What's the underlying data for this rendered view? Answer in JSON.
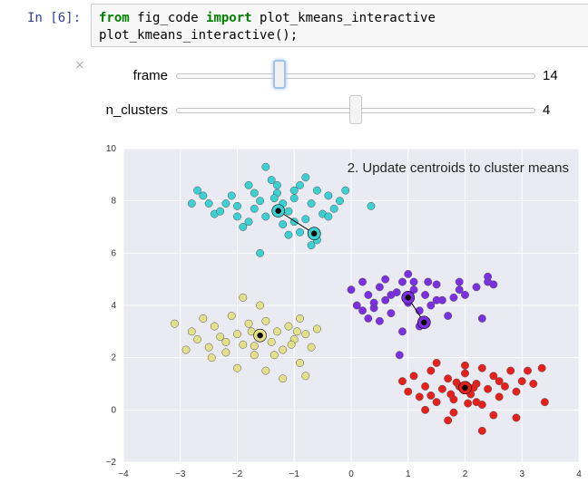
{
  "cell": {
    "prompt": "In [6]:",
    "line1_kw1": "from",
    "line1_mod": " fig_code ",
    "line1_kw2": "import",
    "line1_fn": " plot_kmeans_interactive",
    "line2": "plot_kmeans_interactive();"
  },
  "widgets": {
    "close_glyph": "×",
    "frame": {
      "label": "frame",
      "value": "14",
      "min": 0,
      "max": 50,
      "current": 14
    },
    "n_clusters": {
      "label": "n_clusters",
      "value": "4",
      "min": 1,
      "max": 7,
      "current": 4
    }
  },
  "chart_data": {
    "type": "scatter",
    "title": "",
    "annotation": "2. Update centroids to cluster means",
    "xlim": [
      -4,
      4
    ],
    "ylim": [
      -2,
      10
    ],
    "xticks": [
      "−4",
      "−3",
      "−2",
      "−1",
      "0",
      "1",
      "2",
      "3",
      "4"
    ],
    "yticks": [
      "−2",
      "0",
      "2",
      "4",
      "6",
      "8",
      "10"
    ],
    "grid": true,
    "clusters": [
      {
        "color": "#3dd0d2",
        "points": [
          [
            -2.7,
            8.4
          ],
          [
            -2.6,
            8.2
          ],
          [
            -2.5,
            7.9
          ],
          [
            -2.4,
            7.5
          ],
          [
            -2.2,
            7.9
          ],
          [
            -2.1,
            8.2
          ],
          [
            -2.0,
            7.4
          ],
          [
            -1.9,
            7.0
          ],
          [
            -1.8,
            8.6
          ],
          [
            -1.7,
            7.7
          ],
          [
            -1.6,
            8.0
          ],
          [
            -1.5,
            7.4
          ],
          [
            -1.4,
            8.8
          ],
          [
            -1.3,
            8.3
          ],
          [
            -1.2,
            7.1
          ],
          [
            -1.1,
            7.6
          ],
          [
            -1.0,
            8.1
          ],
          [
            -0.9,
            8.6
          ],
          [
            -0.8,
            7.3
          ],
          [
            -0.7,
            7.9
          ],
          [
            -0.6,
            8.4
          ],
          [
            -0.5,
            7.5
          ],
          [
            -0.4,
            8.2
          ],
          [
            -0.3,
            7.7
          ],
          [
            -0.2,
            8.0
          ],
          [
            -1.5,
            9.3
          ],
          [
            -1.2,
            7.9
          ],
          [
            -1.0,
            7.2
          ],
          [
            -1.8,
            7.2
          ],
          [
            -2.3,
            7.6
          ],
          [
            -2.8,
            7.9
          ],
          [
            -1.35,
            8.1
          ],
          [
            -0.8,
            8.9
          ],
          [
            -1.6,
            6.0
          ],
          [
            -1.1,
            6.7
          ],
          [
            -0.7,
            6.3
          ],
          [
            -0.9,
            6.8
          ],
          [
            -0.6,
            6.5
          ],
          [
            0.35,
            7.8
          ],
          [
            -0.1,
            8.4
          ],
          [
            -0.4,
            7.4
          ],
          [
            -1.7,
            8.3
          ],
          [
            -2.0,
            7.8
          ],
          [
            -1.3,
            8.6
          ],
          [
            -1.0,
            8.4
          ]
        ],
        "centroid": [
          -1.28,
          7.62
        ],
        "prev": [
          -0.65,
          6.75
        ]
      },
      {
        "color": "#7b2fe0",
        "points": [
          [
            0.0,
            4.6
          ],
          [
            0.1,
            4.0
          ],
          [
            0.2,
            4.9
          ],
          [
            0.3,
            4.4
          ],
          [
            0.4,
            3.9
          ],
          [
            0.5,
            4.7
          ],
          [
            0.6,
            4.2
          ],
          [
            0.7,
            3.7
          ],
          [
            0.8,
            4.5
          ],
          [
            0.9,
            4.9
          ],
          [
            1.0,
            4.1
          ],
          [
            1.1,
            4.6
          ],
          [
            1.2,
            3.8
          ],
          [
            1.3,
            4.4
          ],
          [
            1.4,
            4.0
          ],
          [
            1.5,
            4.8
          ],
          [
            1.6,
            4.2
          ],
          [
            1.7,
            3.6
          ],
          [
            1.8,
            4.3
          ],
          [
            1.9,
            4.9
          ],
          [
            2.0,
            4.4
          ],
          [
            2.2,
            4.7
          ],
          [
            2.4,
            4.9
          ],
          [
            1.0,
            5.2
          ],
          [
            0.6,
            5.0
          ],
          [
            0.3,
            3.5
          ],
          [
            0.5,
            3.4
          ],
          [
            0.9,
            3.0
          ],
          [
            1.2,
            3.2
          ],
          [
            2.3,
            3.5
          ],
          [
            2.4,
            5.1
          ],
          [
            2.5,
            4.8
          ],
          [
            0.85,
            2.1
          ],
          [
            1.35,
            4.9
          ],
          [
            1.9,
            4.6
          ],
          [
            0.7,
            4.4
          ],
          [
            1.5,
            4.2
          ],
          [
            1.1,
            4.9
          ],
          [
            0.4,
            4.1
          ],
          [
            0.2,
            3.8
          ]
        ],
        "centroid": [
          1.0,
          4.3
        ],
        "prev": [
          1.28,
          3.35
        ]
      },
      {
        "color": "#e3e08a",
        "points": [
          [
            -3.1,
            3.3
          ],
          [
            -2.9,
            2.3
          ],
          [
            -2.8,
            3.0
          ],
          [
            -2.7,
            2.7
          ],
          [
            -2.6,
            3.5
          ],
          [
            -2.5,
            2.4
          ],
          [
            -2.4,
            3.2
          ],
          [
            -2.3,
            2.8
          ],
          [
            -2.2,
            2.2
          ],
          [
            -2.1,
            3.6
          ],
          [
            -2.0,
            2.9
          ],
          [
            -1.9,
            2.5
          ],
          [
            -1.8,
            3.3
          ],
          [
            -1.7,
            2.1
          ],
          [
            -1.6,
            2.8
          ],
          [
            -1.5,
            3.4
          ],
          [
            -1.4,
            2.6
          ],
          [
            -1.3,
            3.0
          ],
          [
            -1.2,
            2.3
          ],
          [
            -1.1,
            3.2
          ],
          [
            -1.0,
            2.7
          ],
          [
            -0.9,
            3.5
          ],
          [
            -0.8,
            2.9
          ],
          [
            -0.7,
            2.4
          ],
          [
            -0.6,
            3.1
          ],
          [
            -1.9,
            4.3
          ],
          [
            -1.6,
            4.0
          ],
          [
            -2.0,
            1.6
          ],
          [
            -1.5,
            1.5
          ],
          [
            -0.9,
            1.8
          ],
          [
            -1.2,
            1.2
          ],
          [
            -0.8,
            1.3
          ],
          [
            -2.2,
            2.6
          ],
          [
            -1.75,
            3.0
          ],
          [
            -1.35,
            2.1
          ],
          [
            -1.05,
            2.5
          ],
          [
            -0.95,
            3.0
          ],
          [
            -2.45,
            2.0
          ],
          [
            -1.7,
            2.45
          ]
        ],
        "centroid": [
          -1.6,
          2.85
        ],
        "prev": [
          -1.6,
          2.85
        ]
      },
      {
        "color": "#e8201b",
        "points": [
          [
            0.9,
            1.1
          ],
          [
            1.0,
            0.7
          ],
          [
            1.1,
            1.3
          ],
          [
            1.2,
            0.5
          ],
          [
            1.3,
            0.9
          ],
          [
            1.4,
            1.5
          ],
          [
            1.5,
            0.3
          ],
          [
            1.6,
            0.8
          ],
          [
            1.7,
            1.2
          ],
          [
            1.8,
            0.4
          ],
          [
            1.9,
            0.9
          ],
          [
            2.0,
            1.4
          ],
          [
            2.1,
            0.6
          ],
          [
            2.2,
            1.0
          ],
          [
            2.3,
            0.2
          ],
          [
            2.4,
            0.8
          ],
          [
            2.5,
            1.3
          ],
          [
            2.6,
            0.5
          ],
          [
            2.7,
            0.9
          ],
          [
            2.8,
            1.5
          ],
          [
            2.9,
            0.7
          ],
          [
            3.0,
            1.1
          ],
          [
            3.2,
            1.0
          ],
          [
            3.4,
            0.3
          ],
          [
            3.35,
            1.6
          ],
          [
            2.9,
            -0.3
          ],
          [
            2.3,
            -0.8
          ],
          [
            1.7,
            -0.4
          ],
          [
            1.3,
            0.0
          ],
          [
            1.8,
            -0.1
          ],
          [
            2.2,
            0.3
          ],
          [
            2.5,
            -0.2
          ],
          [
            1.5,
            1.8
          ],
          [
            2.0,
            1.7
          ],
          [
            2.3,
            1.6
          ],
          [
            3.1,
            1.5
          ],
          [
            1.75,
            0.6
          ],
          [
            2.05,
            0.25
          ],
          [
            2.15,
            0.85
          ],
          [
            1.85,
            1.05
          ],
          [
            2.6,
            1.1
          ],
          [
            1.4,
            0.55
          ]
        ],
        "centroid": [
          2.0,
          0.85
        ],
        "prev": [
          2.0,
          0.85
        ]
      }
    ]
  }
}
